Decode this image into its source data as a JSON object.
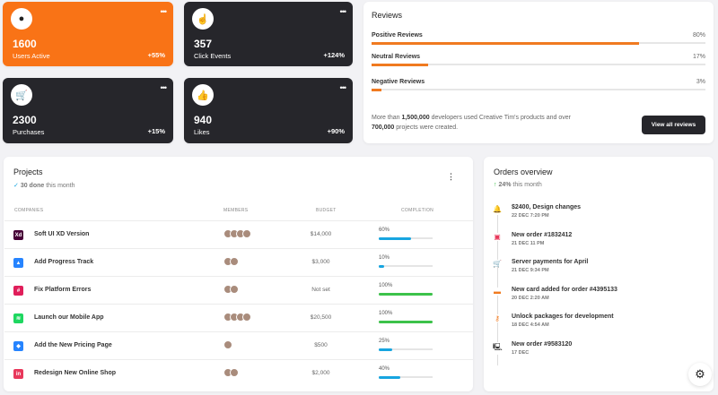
{
  "stats": [
    {
      "value": "1600",
      "label": "Users Active",
      "change": "+55%",
      "icon": "user-circle-icon"
    },
    {
      "value": "357",
      "label": "Click Events",
      "change": "+124%",
      "icon": "pointer-icon"
    },
    {
      "value": "2300",
      "label": "Purchases",
      "change": "+15%",
      "icon": "cart-icon"
    },
    {
      "value": "940",
      "label": "Likes",
      "change": "+90%",
      "icon": "thumbs-up-icon"
    }
  ],
  "more_glyph": "•••",
  "reviews": {
    "title": "Reviews",
    "items": [
      {
        "label": "Positive Reviews",
        "percent": "80%",
        "value": 80
      },
      {
        "label": "Neutral Reviews",
        "percent": "17%",
        "value": 17
      },
      {
        "label": "Negative Reviews",
        "percent": "3%",
        "value": 3
      }
    ],
    "note_a": "More than ",
    "note_b": "1,500,000",
    "note_c": " developers used Creative Tim's products and over ",
    "note_d": "700,000",
    "note_e": " projects were created.",
    "button": "View all reviews",
    "accent": "#f07a20"
  },
  "projects": {
    "title": "Projects",
    "check": "✓",
    "done_bold": "30 done",
    "done_rest": " this month",
    "columns": [
      "COMPANIES",
      "MEMBERS",
      "BUDGET",
      "COMPLETION"
    ],
    "rows": [
      {
        "name": "Soft UI XD Version",
        "logo": "Xd",
        "logo_color": "#470137",
        "members": 4,
        "budget": "$14,000",
        "completion": "60%",
        "value": 60,
        "bar": "#17a5e0"
      },
      {
        "name": "Add Progress Track",
        "logo": "▲",
        "logo_color": "#2684ff",
        "members": 2,
        "budget": "$3,000",
        "completion": "10%",
        "value": 10,
        "bar": "#17a5e0"
      },
      {
        "name": "Fix Platform Errors",
        "logo": "#",
        "logo_color": "#e01e5a",
        "members": 2,
        "budget": "Not set",
        "completion": "100%",
        "value": 100,
        "bar": "#3cc24a"
      },
      {
        "name": "Launch our Mobile App",
        "logo": "≋",
        "logo_color": "#1ed760",
        "members": 4,
        "budget": "$20,500",
        "completion": "100%",
        "value": 100,
        "bar": "#3cc24a"
      },
      {
        "name": "Add the New Pricing Page",
        "logo": "◆",
        "logo_color": "#2684ff",
        "members": 1,
        "budget": "$500",
        "completion": "25%",
        "value": 25,
        "bar": "#17a5e0"
      },
      {
        "name": "Redesign New Online Shop",
        "logo": "in",
        "logo_color": "#e8385b",
        "members": 2,
        "budget": "$2,000",
        "completion": "40%",
        "value": 40,
        "bar": "#17a5e0"
      }
    ]
  },
  "orders": {
    "title": "Orders overview",
    "arrow": "↑",
    "pct": "24%",
    "rest": " this month",
    "items": [
      {
        "title": "$2400, Design changes",
        "date": "22 DEC 7:20 PM",
        "icon": "bell-icon",
        "glyph": "🔔",
        "color": "#3cc24a"
      },
      {
        "title": "New order #1832412",
        "date": "21 DEC 11 PM",
        "icon": "html5-icon",
        "glyph": "▣",
        "color": "#e8385b"
      },
      {
        "title": "Server payments for April",
        "date": "21 DEC 9:34 PM",
        "icon": "cart-icon",
        "glyph": "🛒",
        "color": "#2b6fd6"
      },
      {
        "title": "New card added for order #4395133",
        "date": "20 DEC 2:20 AM",
        "icon": "credit-card-icon",
        "glyph": "▬",
        "color": "#f07a20"
      },
      {
        "title": "Unlock packages for development",
        "date": "18 DEC 4:54 AM",
        "icon": "key-icon",
        "glyph": "⚷",
        "color": "#f07a20"
      },
      {
        "title": "New order #9583120",
        "date": "17 DEC",
        "icon": "monitor-icon",
        "glyph": "🖳",
        "color": "#333"
      }
    ]
  },
  "settings_icon": "⚙"
}
